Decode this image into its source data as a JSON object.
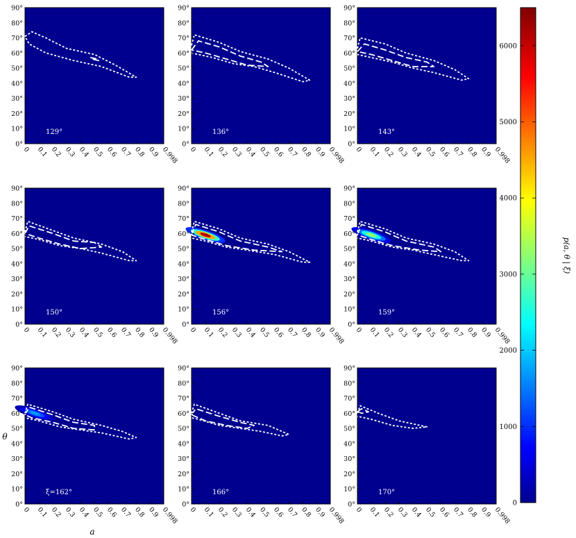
{
  "figure": {
    "y_axis_label": "θ",
    "x_axis_label": "a",
    "colorbar_label": "p(a, θ | ξ)",
    "colorbar_ticks": [
      "0",
      "1000",
      "2000",
      "3000",
      "4000",
      "5000",
      "6000"
    ],
    "colorbar_range": [
      0,
      6500
    ],
    "theta_tick_labels": [
      "0°",
      "10°",
      "20°",
      "30°",
      "40°",
      "50°",
      "60°",
      "70°",
      "80°",
      "90°"
    ],
    "a_tick_labels": [
      "0",
      "0.1",
      "0.2",
      "0.3",
      "0.4",
      "0.5",
      "0.6",
      "0.7",
      "0.8",
      "0.9",
      "0.998"
    ],
    "colors": {
      "background": "#00008f",
      "contour": "#ffffff"
    }
  },
  "chart_data": [
    {
      "type": "heatmap",
      "panel_label": "129°",
      "contours": [
        {
          "level": "outer",
          "line": "dotted",
          "points": [
            [
              0,
              71
            ],
            [
              0.05,
              74
            ],
            [
              0.15,
              70
            ],
            [
              0.3,
              63
            ],
            [
              0.5,
              59
            ],
            [
              0.65,
              52
            ],
            [
              0.8,
              44
            ],
            [
              0.75,
              44
            ],
            [
              0.55,
              51
            ],
            [
              0.35,
              55
            ],
            [
              0.15,
              60
            ],
            [
              0.03,
              66
            ],
            [
              0,
              71
            ]
          ]
        },
        {
          "level": "inner",
          "line": "dashed",
          "points": [
            [
              0.47,
              57
            ],
            [
              0.52,
              56
            ],
            [
              0.53,
              55
            ],
            [
              0.48,
              56
            ]
          ]
        }
      ],
      "peak": null
    },
    {
      "type": "heatmap",
      "panel_label": "136°",
      "contours": [
        {
          "level": "outer",
          "line": "dotted",
          "points": [
            [
              0,
              65
            ],
            [
              0.02,
              72
            ],
            [
              0.2,
              67
            ],
            [
              0.35,
              61
            ],
            [
              0.55,
              56
            ],
            [
              0.7,
              50
            ],
            [
              0.85,
              42
            ],
            [
              0.8,
              41
            ],
            [
              0.6,
              47
            ],
            [
              0.45,
              51
            ],
            [
              0.3,
              53
            ],
            [
              0.15,
              57
            ],
            [
              0,
              60
            ]
          ]
        },
        {
          "level": "inner",
          "line": "dashed",
          "points": [
            [
              0,
              62
            ],
            [
              0.05,
              68
            ],
            [
              0.2,
              64
            ],
            [
              0.35,
              58
            ],
            [
              0.5,
              54
            ],
            [
              0.55,
              51
            ],
            [
              0.4,
              52
            ],
            [
              0.25,
              56
            ],
            [
              0.1,
              60
            ],
            [
              0,
              62
            ]
          ]
        }
      ],
      "peak": null
    },
    {
      "type": "heatmap",
      "panel_label": "143°",
      "contours": [
        {
          "level": "outer",
          "line": "dotted",
          "points": [
            [
              0,
              63
            ],
            [
              0.02,
              70
            ],
            [
              0.2,
              66
            ],
            [
              0.35,
              60
            ],
            [
              0.55,
              55
            ],
            [
              0.7,
              49
            ],
            [
              0.8,
              43
            ],
            [
              0.75,
              42
            ],
            [
              0.55,
              47
            ],
            [
              0.4,
              50
            ],
            [
              0.25,
              54
            ],
            [
              0.1,
              57
            ],
            [
              0,
              59
            ]
          ]
        },
        {
          "level": "inner",
          "line": "dashed",
          "points": [
            [
              0,
              61
            ],
            [
              0.05,
              66
            ],
            [
              0.2,
              62
            ],
            [
              0.35,
              57
            ],
            [
              0.5,
              54
            ],
            [
              0.55,
              51
            ],
            [
              0.4,
              51
            ],
            [
              0.25,
              55
            ],
            [
              0.1,
              59
            ],
            [
              0,
              61
            ]
          ]
        }
      ],
      "peak": null
    },
    {
      "type": "heatmap",
      "panel_label": "150°",
      "contours": [
        {
          "level": "outer",
          "line": "dotted",
          "points": [
            [
              0,
              61
            ],
            [
              0.02,
              68
            ],
            [
              0.2,
              62
            ],
            [
              0.35,
              57
            ],
            [
              0.55,
              53
            ],
            [
              0.7,
              48
            ],
            [
              0.8,
              42
            ],
            [
              0.75,
              42
            ],
            [
              0.55,
              47
            ],
            [
              0.4,
              50
            ],
            [
              0.25,
              52
            ],
            [
              0.1,
              56
            ],
            [
              0,
              58
            ]
          ]
        },
        {
          "level": "inner",
          "line": "dashed",
          "points": [
            [
              0,
              60
            ],
            [
              0.03,
              65
            ],
            [
              0.2,
              60
            ],
            [
              0.35,
              55
            ],
            [
              0.5,
              54
            ],
            [
              0.55,
              51
            ],
            [
              0.4,
              50
            ],
            [
              0.25,
              53
            ],
            [
              0.1,
              57
            ],
            [
              0,
              60
            ]
          ]
        }
      ],
      "peak": null
    },
    {
      "type": "heatmap",
      "panel_label": "156°",
      "contours": [
        {
          "level": "outer",
          "line": "dotted",
          "points": [
            [
              0,
              61
            ],
            [
              0.02,
              68
            ],
            [
              0.2,
              63
            ],
            [
              0.35,
              57
            ],
            [
              0.55,
              53
            ],
            [
              0.7,
              48
            ],
            [
              0.85,
              41
            ],
            [
              0.8,
              41
            ],
            [
              0.6,
              46
            ],
            [
              0.4,
              49
            ],
            [
              0.25,
              51
            ],
            [
              0.1,
              55
            ],
            [
              0,
              57
            ]
          ]
        },
        {
          "level": "inner",
          "line": "dashed",
          "points": [
            [
              0,
              59
            ],
            [
              0.03,
              66
            ],
            [
              0.2,
              61
            ],
            [
              0.35,
              55
            ],
            [
              0.55,
              51
            ],
            [
              0.65,
              48
            ],
            [
              0.45,
              49
            ],
            [
              0.25,
              52
            ],
            [
              0.1,
              56
            ],
            [
              0,
              59
            ]
          ]
        }
      ],
      "peak": {
        "a": 0.08,
        "theta": 59,
        "value": 6200
      }
    },
    {
      "type": "heatmap",
      "panel_label": "159°",
      "contours": [
        {
          "level": "outer",
          "line": "dotted",
          "points": [
            [
              0,
              61
            ],
            [
              0.02,
              68
            ],
            [
              0.2,
              63
            ],
            [
              0.35,
              57
            ],
            [
              0.55,
              53
            ],
            [
              0.7,
              48
            ],
            [
              0.8,
              42
            ],
            [
              0.75,
              42
            ],
            [
              0.55,
              46
            ],
            [
              0.4,
              49
            ],
            [
              0.25,
              51
            ],
            [
              0.1,
              55
            ],
            [
              0,
              57
            ]
          ]
        },
        {
          "level": "inner",
          "line": "dashed",
          "points": [
            [
              0,
              59
            ],
            [
              0.03,
              66
            ],
            [
              0.2,
              61
            ],
            [
              0.35,
              55
            ],
            [
              0.55,
              51
            ],
            [
              0.6,
              48
            ],
            [
              0.45,
              49
            ],
            [
              0.25,
              52
            ],
            [
              0.1,
              56
            ],
            [
              0,
              59
            ]
          ]
        }
      ],
      "peak": {
        "a": 0.08,
        "theta": 59,
        "value": 3400
      }
    },
    {
      "type": "heatmap",
      "panel_label": "ξ=162°",
      "contours": [
        {
          "level": "outer",
          "line": "dotted",
          "points": [
            [
              0,
              60
            ],
            [
              0.02,
              66
            ],
            [
              0.2,
              61
            ],
            [
              0.35,
              56
            ],
            [
              0.55,
              52
            ],
            [
              0.7,
              48
            ],
            [
              0.8,
              44
            ],
            [
              0.75,
              43
            ],
            [
              0.55,
              47
            ],
            [
              0.4,
              49
            ],
            [
              0.25,
              51
            ],
            [
              0.1,
              55
            ],
            [
              0,
              57
            ]
          ]
        },
        {
          "level": "inner",
          "line": "dashed",
          "points": [
            [
              0,
              59
            ],
            [
              0.03,
              64
            ],
            [
              0.2,
              59
            ],
            [
              0.35,
              54
            ],
            [
              0.5,
              52
            ],
            [
              0.5,
              49
            ],
            [
              0.35,
              50
            ],
            [
              0.2,
              54
            ],
            [
              0.05,
              57
            ],
            [
              0,
              59
            ]
          ]
        }
      ],
      "peak": {
        "a": 0.05,
        "theta": 60,
        "value": 1800
      }
    },
    {
      "type": "heatmap",
      "panel_label": "166°",
      "contours": [
        {
          "level": "outer",
          "line": "dotted",
          "points": [
            [
              0,
              60
            ],
            [
              0.02,
              66
            ],
            [
              0.2,
              60
            ],
            [
              0.35,
              55
            ],
            [
              0.55,
              52
            ],
            [
              0.7,
              46
            ],
            [
              0.65,
              45
            ],
            [
              0.5,
              48
            ],
            [
              0.35,
              50
            ],
            [
              0.2,
              52
            ],
            [
              0.05,
              56
            ],
            [
              0,
              57
            ]
          ]
        },
        {
          "level": "inner",
          "line": "dashed",
          "points": [
            [
              0,
              59
            ],
            [
              0.03,
              63
            ],
            [
              0.2,
              58
            ],
            [
              0.35,
              54
            ],
            [
              0.45,
              52
            ],
            [
              0.4,
              50
            ],
            [
              0.25,
              52
            ],
            [
              0.1,
              55
            ],
            [
              0,
              59
            ]
          ]
        }
      ],
      "peak": null
    },
    {
      "type": "heatmap",
      "panel_label": "170°",
      "contours": [
        {
          "level": "outer",
          "line": "dotted",
          "points": [
            [
              0,
              60
            ],
            [
              0.02,
              65
            ],
            [
              0.15,
              60
            ],
            [
              0.3,
              55
            ],
            [
              0.45,
              52
            ],
            [
              0.5,
              51
            ],
            [
              0.4,
              50
            ],
            [
              0.25,
              52
            ],
            [
              0.1,
              56
            ],
            [
              0,
              58
            ]
          ]
        },
        {
          "level": "inner",
          "line": "dashed",
          "points": [
            [
              0,
              61
            ],
            [
              0.03,
              63
            ],
            [
              0.08,
              61
            ],
            [
              0.03,
              60
            ],
            [
              0,
              61
            ]
          ]
        }
      ],
      "peak": null
    }
  ]
}
